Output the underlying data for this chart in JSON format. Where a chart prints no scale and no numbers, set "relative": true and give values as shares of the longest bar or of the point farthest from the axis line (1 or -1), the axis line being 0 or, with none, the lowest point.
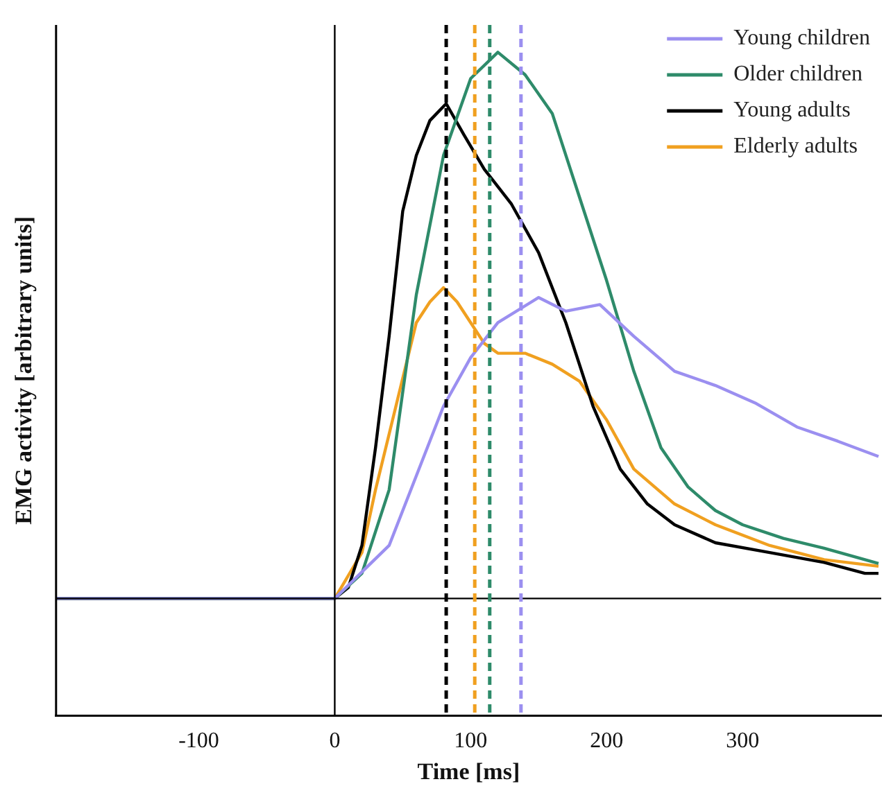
{
  "chart_data": {
    "type": "line",
    "xlabel": "Time [ms]",
    "ylabel": "EMG activity [arbitrary units]",
    "relative": true,
    "xlim": [
      -205,
      402
    ],
    "xticks": [
      -100,
      0,
      100,
      200,
      300
    ],
    "grid": false,
    "legend": "top right",
    "marker": "none",
    "line_style": "solid",
    "series": [
      {
        "name": "Young children",
        "color": "#9b8ff0",
        "x": [
          -205,
          0,
          40,
          80,
          100,
          120,
          150,
          170,
          195,
          220,
          250,
          280,
          310,
          340,
          370,
          400
        ],
        "values": [
          0,
          0,
          0.097,
          0.352,
          0.441,
          0.505,
          0.551,
          0.526,
          0.538,
          0.48,
          0.416,
          0.39,
          0.357,
          0.314,
          0.288,
          0.26
        ]
      },
      {
        "name": "Older children",
        "color": "#2e8b6a",
        "x": [
          -205,
          0,
          20,
          40,
          60,
          80,
          100,
          120,
          140,
          160,
          180,
          200,
          220,
          240,
          260,
          280,
          300,
          330,
          360,
          400
        ],
        "values": [
          0,
          0,
          0.046,
          0.199,
          0.556,
          0.811,
          0.952,
          1,
          0.959,
          0.888,
          0.735,
          0.582,
          0.416,
          0.276,
          0.204,
          0.161,
          0.135,
          0.11,
          0.092,
          0.064
        ]
      },
      {
        "name": "Young adults",
        "color": "#000000",
        "x": [
          -205,
          0,
          10,
          20,
          30,
          40,
          50,
          60,
          70,
          82,
          95,
          110,
          130,
          150,
          170,
          190,
          210,
          230,
          250,
          280,
          320,
          360,
          390,
          400
        ],
        "values": [
          0,
          0,
          0.02,
          0.097,
          0.276,
          0.48,
          0.709,
          0.811,
          0.875,
          0.906,
          0.849,
          0.786,
          0.722,
          0.633,
          0.505,
          0.352,
          0.237,
          0.173,
          0.135,
          0.102,
          0.084,
          0.066,
          0.046,
          0.046
        ]
      },
      {
        "name": "Elderly adults",
        "color": "#f0a020",
        "x": [
          -205,
          0,
          20,
          30,
          40,
          50,
          60,
          70,
          80,
          90,
          100,
          110,
          120,
          140,
          160,
          180,
          200,
          220,
          250,
          280,
          320,
          360,
          400
        ],
        "values": [
          0,
          0,
          0.084,
          0.199,
          0.301,
          0.403,
          0.505,
          0.543,
          0.569,
          0.543,
          0.505,
          0.467,
          0.449,
          0.449,
          0.429,
          0.398,
          0.327,
          0.237,
          0.173,
          0.135,
          0.097,
          0.071,
          0.059
        ]
      }
    ],
    "ref_lines": [
      {
        "axis": "x",
        "value": 0,
        "color": "#000000",
        "line_style": "solid"
      },
      {
        "axis": "x",
        "value": 82,
        "color": "#000000",
        "line_style": "dashed"
      },
      {
        "axis": "x",
        "value": 103,
        "color": "#f0a020",
        "line_style": "dashed"
      },
      {
        "axis": "x",
        "value": 114,
        "color": "#2e8b6a",
        "line_style": "dashed"
      },
      {
        "axis": "x",
        "value": 137,
        "color": "#9b8ff0",
        "line_style": "dashed"
      }
    ]
  }
}
